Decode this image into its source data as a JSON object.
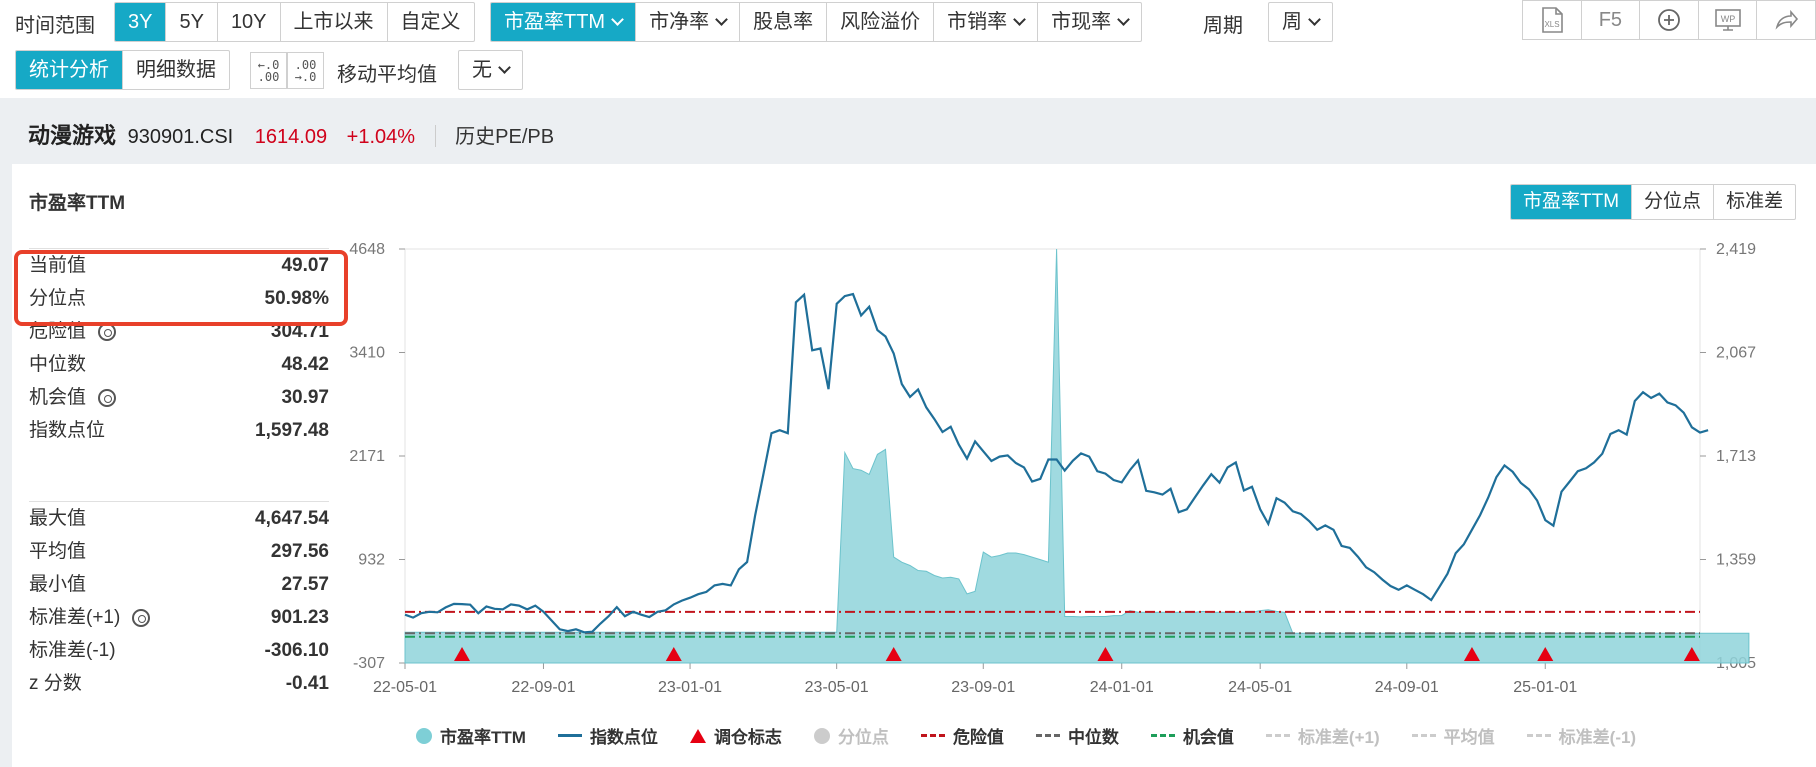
{
  "toolbar": {
    "range_label": "时间范围",
    "range_buttons": [
      "3Y",
      "5Y",
      "10Y",
      "上市以来",
      "自定义"
    ],
    "range_active": 0,
    "metric_buttons": [
      "市盈率TTM",
      "市净率",
      "股息率",
      "风险溢价",
      "市销率",
      "市现率"
    ],
    "metric_active": 0,
    "period_label": "周期",
    "period_value": "周",
    "icons": [
      "xls-export-icon",
      "f5-refresh-icon",
      "add-icon",
      "wp-icon",
      "share-icon"
    ],
    "f5_label": "F5",
    "xls_label": "XLS",
    "wp_label": "WP",
    "view_buttons": [
      "统计分析",
      "明细数据"
    ],
    "view_active": 0,
    "ma_label": "移动平均值",
    "ma_value": "无"
  },
  "index": {
    "name": "动漫游戏",
    "code": "930901.CSI",
    "price": "1614.09",
    "change": "+1.04%",
    "section": "历史PE/PB"
  },
  "panel": {
    "title": "市盈率TTM",
    "mode_buttons": [
      "市盈率TTM",
      "分位点",
      "标准差"
    ],
    "mode_active": 0
  },
  "stats": {
    "group1": [
      {
        "label": "当前值",
        "value": "49.07",
        "gear": false
      },
      {
        "label": "分位点",
        "value": "50.98%",
        "gear": false
      },
      {
        "label": "危险值",
        "value": "304.71",
        "gear": true
      },
      {
        "label": "中位数",
        "value": "48.42",
        "gear": false
      },
      {
        "label": "机会值",
        "value": "30.97",
        "gear": true
      },
      {
        "label": "指数点位",
        "value": "1,597.48",
        "gear": false
      }
    ],
    "group2": [
      {
        "label": "最大值",
        "value": "4,647.54",
        "gear": false
      },
      {
        "label": "平均值",
        "value": "297.56",
        "gear": false
      },
      {
        "label": "最小值",
        "value": "27.57",
        "gear": false
      },
      {
        "label": "标准差(+1)",
        "value": "901.23",
        "gear": true
      },
      {
        "label": "标准差(-1)",
        "value": "-306.10",
        "gear": false
      },
      {
        "label": "z 分数",
        "value": "-0.41",
        "gear": false
      }
    ]
  },
  "legend": [
    {
      "label": "市盈率TTM",
      "kind": "dot",
      "color": "#7ecfd6",
      "dim": false
    },
    {
      "label": "指数点位",
      "kind": "line",
      "color": "#1f6f99",
      "dim": false
    },
    {
      "label": "调仓标志",
      "kind": "tri",
      "color": "#e60012",
      "dim": false
    },
    {
      "label": "分位点",
      "kind": "dot",
      "color": "#cccccc",
      "dim": true
    },
    {
      "label": "危险值",
      "kind": "dash",
      "color": "#c0141c",
      "dim": false
    },
    {
      "label": "中位数",
      "kind": "dash",
      "color": "#666666",
      "dim": false
    },
    {
      "label": "机会值",
      "kind": "dash",
      "color": "#1e9e5a",
      "dim": false
    },
    {
      "label": "标准差(+1)",
      "kind": "dash",
      "color": "#cccccc",
      "dim": true
    },
    {
      "label": "平均值",
      "kind": "dash",
      "color": "#cccccc",
      "dim": true
    },
    {
      "label": "标准差(-1)",
      "kind": "dash",
      "color": "#cccccc",
      "dim": true
    }
  ],
  "chart_data": {
    "type": "line",
    "y_left": {
      "min": -307,
      "max": 4648,
      "ticks": [
        "4648",
        "3410",
        "2171",
        "932",
        "-307"
      ]
    },
    "y_right": {
      "min": 1005,
      "max": 2419,
      "ticks": [
        "2,419",
        "2,067",
        "1,713",
        "1,359",
        "1,005"
      ]
    },
    "x_ticks": [
      "22-05-01",
      "22-09-01",
      "23-01-01",
      "23-05-01",
      "23-09-01",
      "24-01-01",
      "24-05-01",
      "24-09-01",
      "25-01-01"
    ],
    "x_tick_index": [
      0,
      17,
      35,
      53,
      71,
      88,
      105,
      123,
      140
    ],
    "x_count": 160,
    "reference_lines": {
      "danger": 304.71,
      "median": 48.42,
      "opportunity": 30.97
    },
    "rebalance_index": [
      7,
      33,
      60,
      86,
      131,
      140,
      158
    ],
    "series": [
      {
        "name": "市盈率TTM",
        "values": [
          60,
          60,
          60,
          60,
          60,
          60,
          60,
          60,
          60,
          60,
          60,
          60,
          60,
          60,
          60,
          60,
          60,
          60,
          60,
          60,
          60,
          60,
          60,
          60,
          60,
          60,
          60,
          60,
          60,
          60,
          60,
          60,
          60,
          60,
          60,
          60,
          60,
          60,
          60,
          60,
          60,
          60,
          60,
          60,
          60,
          60,
          60,
          60,
          60,
          60,
          60,
          60,
          60,
          60,
          2210,
          2020,
          2000,
          1950,
          2190,
          2250,
          960,
          900,
          860,
          800,
          790,
          740,
          710,
          720,
          700,
          520,
          550,
          1020,
          960,
          980,
          1010,
          1010,
          990,
          960,
          930,
          900,
          4648,
          250,
          250,
          245,
          250,
          250,
          250,
          260,
          260,
          320,
          300,
          300,
          300,
          300,
          300,
          300,
          300,
          300,
          310,
          300,
          300,
          300,
          300,
          300,
          300,
          320,
          330,
          310,
          300,
          50,
          50,
          50,
          50,
          50,
          50,
          50,
          50,
          50,
          50,
          50,
          50,
          50,
          50,
          50,
          50,
          50,
          50,
          50,
          50,
          50,
          50,
          50,
          50,
          50,
          50,
          50,
          50,
          50,
          50,
          50,
          50,
          50,
          50,
          50,
          50,
          50,
          50,
          50,
          50,
          50,
          50,
          50,
          50,
          50,
          50,
          50,
          50,
          50,
          50,
          50,
          50,
          50,
          50,
          50,
          50,
          50
        ]
      },
      {
        "name": "指数点位",
        "values": [
          1170,
          1160,
          1175,
          1180,
          1178,
          1195,
          1207,
          1206,
          1204,
          1175,
          1198,
          1190,
          1188,
          1205,
          1201,
          1188,
          1201,
          1180,
          1150,
          1120,
          1114,
          1120,
          1110,
          1112,
          1140,
          1165,
          1196,
          1165,
          1180,
          1170,
          1162,
          1180,
          1185,
          1205,
          1218,
          1228,
          1240,
          1248,
          1270,
          1275,
          1270,
          1325,
          1350,
          1510,
          1650,
          1790,
          1800,
          1790,
          2237,
          2263,
          2073,
          2079,
          1940,
          2232,
          2258,
          2265,
          2192,
          2222,
          2142,
          2120,
          2062,
          1958,
          1914,
          1939,
          1878,
          1838,
          1794,
          1812,
          1751,
          1703,
          1762,
          1728,
          1695,
          1710,
          1714,
          1688,
          1673,
          1625,
          1634,
          1700,
          1700,
          1662,
          1696,
          1721,
          1710,
          1660,
          1652,
          1630,
          1622,
          1664,
          1697,
          1593,
          1588,
          1580,
          1600,
          1520,
          1530,
          1571,
          1612,
          1650,
          1621,
          1673,
          1690,
          1594,
          1607,
          1530,
          1480,
          1568,
          1553,
          1523,
          1514,
          1490,
          1460,
          1475,
          1460,
          1405,
          1398,
          1368,
          1332,
          1315,
          1290,
          1268,
          1255,
          1270,
          1255,
          1240,
          1220,
          1265,
          1310,
          1380,
          1410,
          1460,
          1510,
          1570,
          1640,
          1680,
          1658,
          1620,
          1598,
          1560,
          1493,
          1474,
          1590,
          1625,
          1660,
          1670,
          1690,
          1720,
          1787,
          1800,
          1785,
          1900,
          1930,
          1910,
          1925,
          1895,
          1885,
          1860,
          1810,
          1792,
          1800
        ]
      }
    ]
  }
}
